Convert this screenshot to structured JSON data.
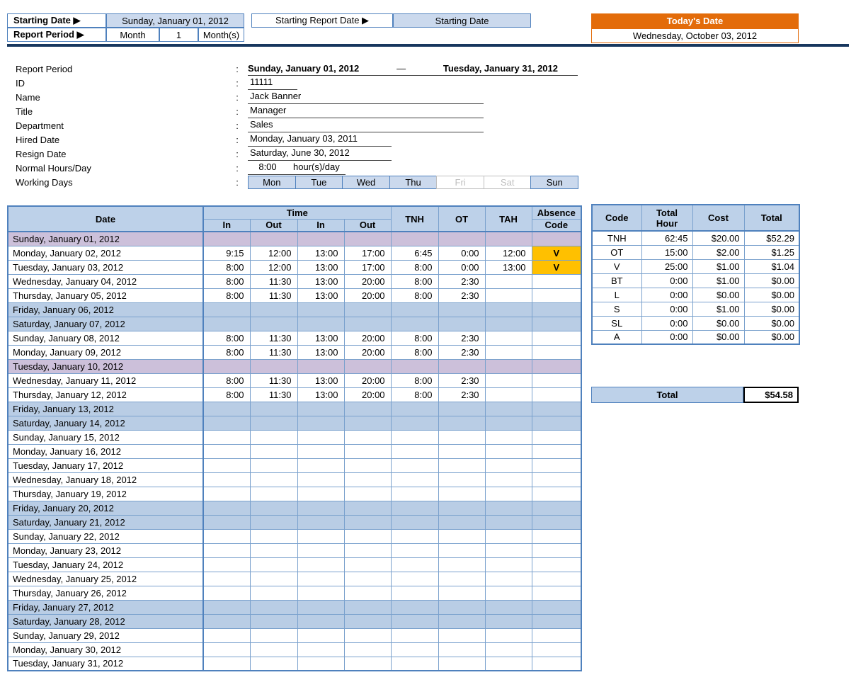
{
  "colors": {
    "header_blue": "#bdd1e9",
    "weekend_blue": "#b9cde5",
    "holiday_purple": "#ccc0da",
    "top_blue": "#cbd9ed",
    "absence_orange": "#ffc000",
    "today_orange": "#e36c0a",
    "border_blue": "#4f81bd",
    "navy": "#17375e"
  },
  "top": {
    "starting_date_label": "Starting Date ▶",
    "starting_date_value": "Sunday, January 01, 2012",
    "starting_report_date_label": "Starting Report Date ▶",
    "starting_report_date_value": "Starting Date",
    "report_period_label": "Report Period ▶",
    "report_period_unit_label": "Month",
    "report_period_value": "1",
    "report_period_suffix": "Month(s)",
    "todays_date_label": "Today's Date",
    "todays_date_value": "Wednesday, October 03, 2012"
  },
  "info": {
    "colon": ":",
    "report_period": {
      "label": "Report Period",
      "from": "Sunday, January 01, 2012",
      "separator": "—",
      "to": "Tuesday, January 31, 2012"
    },
    "id": {
      "label": "ID",
      "value": "11111"
    },
    "name": {
      "label": "Name",
      "value": "Jack Banner"
    },
    "title": {
      "label": "Title",
      "value": "Manager"
    },
    "department": {
      "label": "Department",
      "value": "Sales"
    },
    "hired_date": {
      "label": "Hired Date",
      "value": "Monday, January 03, 2011"
    },
    "resign_date": {
      "label": "Resign Date",
      "value": "Saturday, June 30, 2012"
    },
    "normal_hours": {
      "label": "Normal Hours/Day",
      "value": "8:00",
      "suffix": "hour(s)/day"
    },
    "working_days": {
      "label": "Working Days",
      "days": [
        {
          "label": "Mon",
          "active": true
        },
        {
          "label": "Tue",
          "active": true
        },
        {
          "label": "Wed",
          "active": true
        },
        {
          "label": "Thu",
          "active": true
        },
        {
          "label": "Fri",
          "active": false
        },
        {
          "label": "Sat",
          "active": false
        },
        {
          "label": "Sun",
          "active": true
        }
      ]
    }
  },
  "timesheet": {
    "headers": {
      "date": "Date",
      "time": "Time",
      "sub": [
        "In",
        "Out",
        "In",
        "Out"
      ],
      "tnh": "TNH",
      "ot": "OT",
      "tah": "TAH",
      "absence_line1": "Absence",
      "absence_line2": "Code"
    },
    "rows": [
      {
        "date": "Sunday, January 01, 2012",
        "type": "holiday",
        "cells": [
          "",
          "",
          "",
          "",
          "",
          "",
          "",
          ""
        ]
      },
      {
        "date": "Monday, January 02, 2012",
        "type": "normal",
        "cells": [
          "9:15",
          "12:00",
          "13:00",
          "17:00",
          "6:45",
          "0:00",
          "12:00",
          "V"
        ]
      },
      {
        "date": "Tuesday, January 03, 2012",
        "type": "normal",
        "cells": [
          "8:00",
          "12:00",
          "13:00",
          "17:00",
          "8:00",
          "0:00",
          "13:00",
          "V"
        ]
      },
      {
        "date": "Wednesday, January 04, 2012",
        "type": "normal",
        "cells": [
          "8:00",
          "11:30",
          "13:00",
          "20:00",
          "8:00",
          "2:30",
          "",
          ""
        ]
      },
      {
        "date": "Thursday, January 05, 2012",
        "type": "normal",
        "cells": [
          "8:00",
          "11:30",
          "13:00",
          "20:00",
          "8:00",
          "2:30",
          "",
          ""
        ]
      },
      {
        "date": "Friday, January 06, 2012",
        "type": "weekend",
        "cells": [
          "",
          "",
          "",
          "",
          "",
          "",
          "",
          ""
        ]
      },
      {
        "date": "Saturday, January 07, 2012",
        "type": "weekend",
        "cells": [
          "",
          "",
          "",
          "",
          "",
          "",
          "",
          ""
        ]
      },
      {
        "date": "Sunday, January 08, 2012",
        "type": "normal",
        "cells": [
          "8:00",
          "11:30",
          "13:00",
          "20:00",
          "8:00",
          "2:30",
          "",
          ""
        ]
      },
      {
        "date": "Monday, January 09, 2012",
        "type": "normal",
        "cells": [
          "8:00",
          "11:30",
          "13:00",
          "20:00",
          "8:00",
          "2:30",
          "",
          ""
        ]
      },
      {
        "date": "Tuesday, January 10, 2012",
        "type": "holiday",
        "cells": [
          "",
          "",
          "",
          "",
          "",
          "",
          "",
          ""
        ]
      },
      {
        "date": "Wednesday, January 11, 2012",
        "type": "normal",
        "cells": [
          "8:00",
          "11:30",
          "13:00",
          "20:00",
          "8:00",
          "2:30",
          "",
          ""
        ]
      },
      {
        "date": "Thursday, January 12, 2012",
        "type": "normal",
        "cells": [
          "8:00",
          "11:30",
          "13:00",
          "20:00",
          "8:00",
          "2:30",
          "",
          ""
        ]
      },
      {
        "date": "Friday, January 13, 2012",
        "type": "weekend",
        "cells": [
          "",
          "",
          "",
          "",
          "",
          "",
          "",
          ""
        ]
      },
      {
        "date": "Saturday, January 14, 2012",
        "type": "weekend",
        "cells": [
          "",
          "",
          "",
          "",
          "",
          "",
          "",
          ""
        ]
      },
      {
        "date": "Sunday, January 15, 2012",
        "type": "normal",
        "cells": [
          "",
          "",
          "",
          "",
          "",
          "",
          "",
          ""
        ]
      },
      {
        "date": "Monday, January 16, 2012",
        "type": "normal",
        "cells": [
          "",
          "",
          "",
          "",
          "",
          "",
          "",
          ""
        ]
      },
      {
        "date": "Tuesday, January 17, 2012",
        "type": "normal",
        "cells": [
          "",
          "",
          "",
          "",
          "",
          "",
          "",
          ""
        ]
      },
      {
        "date": "Wednesday, January 18, 2012",
        "type": "normal",
        "cells": [
          "",
          "",
          "",
          "",
          "",
          "",
          "",
          ""
        ]
      },
      {
        "date": "Thursday, January 19, 2012",
        "type": "normal",
        "cells": [
          "",
          "",
          "",
          "",
          "",
          "",
          "",
          ""
        ]
      },
      {
        "date": "Friday, January 20, 2012",
        "type": "weekend",
        "cells": [
          "",
          "",
          "",
          "",
          "",
          "",
          "",
          ""
        ]
      },
      {
        "date": "Saturday, January 21, 2012",
        "type": "weekend",
        "cells": [
          "",
          "",
          "",
          "",
          "",
          "",
          "",
          ""
        ]
      },
      {
        "date": "Sunday, January 22, 2012",
        "type": "normal",
        "cells": [
          "",
          "",
          "",
          "",
          "",
          "",
          "",
          ""
        ]
      },
      {
        "date": "Monday, January 23, 2012",
        "type": "normal",
        "cells": [
          "",
          "",
          "",
          "",
          "",
          "",
          "",
          ""
        ]
      },
      {
        "date": "Tuesday, January 24, 2012",
        "type": "normal",
        "cells": [
          "",
          "",
          "",
          "",
          "",
          "",
          "",
          ""
        ]
      },
      {
        "date": "Wednesday, January 25, 2012",
        "type": "normal",
        "cells": [
          "",
          "",
          "",
          "",
          "",
          "",
          "",
          ""
        ]
      },
      {
        "date": "Thursday, January 26, 2012",
        "type": "normal",
        "cells": [
          "",
          "",
          "",
          "",
          "",
          "",
          "",
          ""
        ]
      },
      {
        "date": "Friday, January 27, 2012",
        "type": "weekend",
        "cells": [
          "",
          "",
          "",
          "",
          "",
          "",
          "",
          ""
        ]
      },
      {
        "date": "Saturday, January 28, 2012",
        "type": "weekend",
        "cells": [
          "",
          "",
          "",
          "",
          "",
          "",
          "",
          ""
        ]
      },
      {
        "date": "Sunday, January 29, 2012",
        "type": "normal",
        "cells": [
          "",
          "",
          "",
          "",
          "",
          "",
          "",
          ""
        ]
      },
      {
        "date": "Monday, January 30, 2012",
        "type": "normal",
        "cells": [
          "",
          "",
          "",
          "",
          "",
          "",
          "",
          ""
        ]
      },
      {
        "date": "Tuesday, January 31, 2012",
        "type": "normal",
        "cells": [
          "",
          "",
          "",
          "",
          "",
          "",
          "",
          ""
        ]
      }
    ]
  },
  "summary": {
    "headers": [
      "Code",
      "Total Hour",
      "Cost",
      "Total"
    ],
    "rows": [
      [
        "TNH",
        "62:45",
        "$20.00",
        "$52.29"
      ],
      [
        "OT",
        "15:00",
        "$2.00",
        "$1.25"
      ],
      [
        "V",
        "25:00",
        "$1.00",
        "$1.04"
      ],
      [
        "BT",
        "0:00",
        "$1.00",
        "$0.00"
      ],
      [
        "L",
        "0:00",
        "$0.00",
        "$0.00"
      ],
      [
        "S",
        "0:00",
        "$1.00",
        "$0.00"
      ],
      [
        "SL",
        "0:00",
        "$0.00",
        "$0.00"
      ],
      [
        "A",
        "0:00",
        "$0.00",
        "$0.00"
      ]
    ],
    "total_label": "Total",
    "total_value": "$54.58"
  }
}
